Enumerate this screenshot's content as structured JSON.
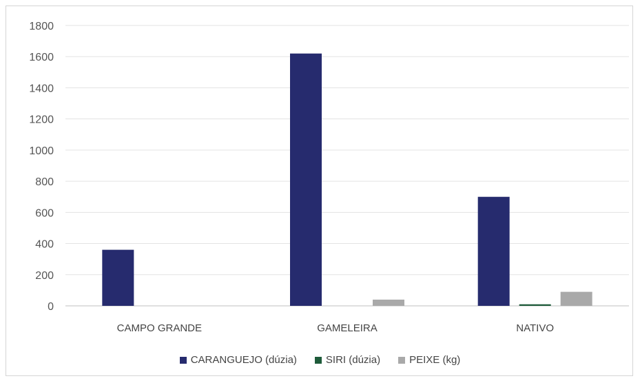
{
  "chart_data": {
    "type": "bar",
    "categories": [
      "CAMPO GRANDE",
      "GAMELEIRA",
      "NATIVO"
    ],
    "series": [
      {
        "name": "CARANGUEJO (dúzia)",
        "color": "#262b6e",
        "values": [
          360,
          1620,
          700
        ]
      },
      {
        "name": "SIRI (dúzia)",
        "color": "#1e5b3a",
        "values": [
          0,
          0,
          10
        ]
      },
      {
        "name": "PEIXE (kg)",
        "color": "#a9a9a9",
        "values": [
          0,
          40,
          90
        ]
      }
    ],
    "ylim": [
      0,
      1800
    ],
    "yticks": [
      "0",
      "200",
      "400",
      "600",
      "800",
      "1000",
      "1200",
      "1400",
      "1600",
      "1800"
    ],
    "grid": true,
    "legend_position": "bottom"
  }
}
